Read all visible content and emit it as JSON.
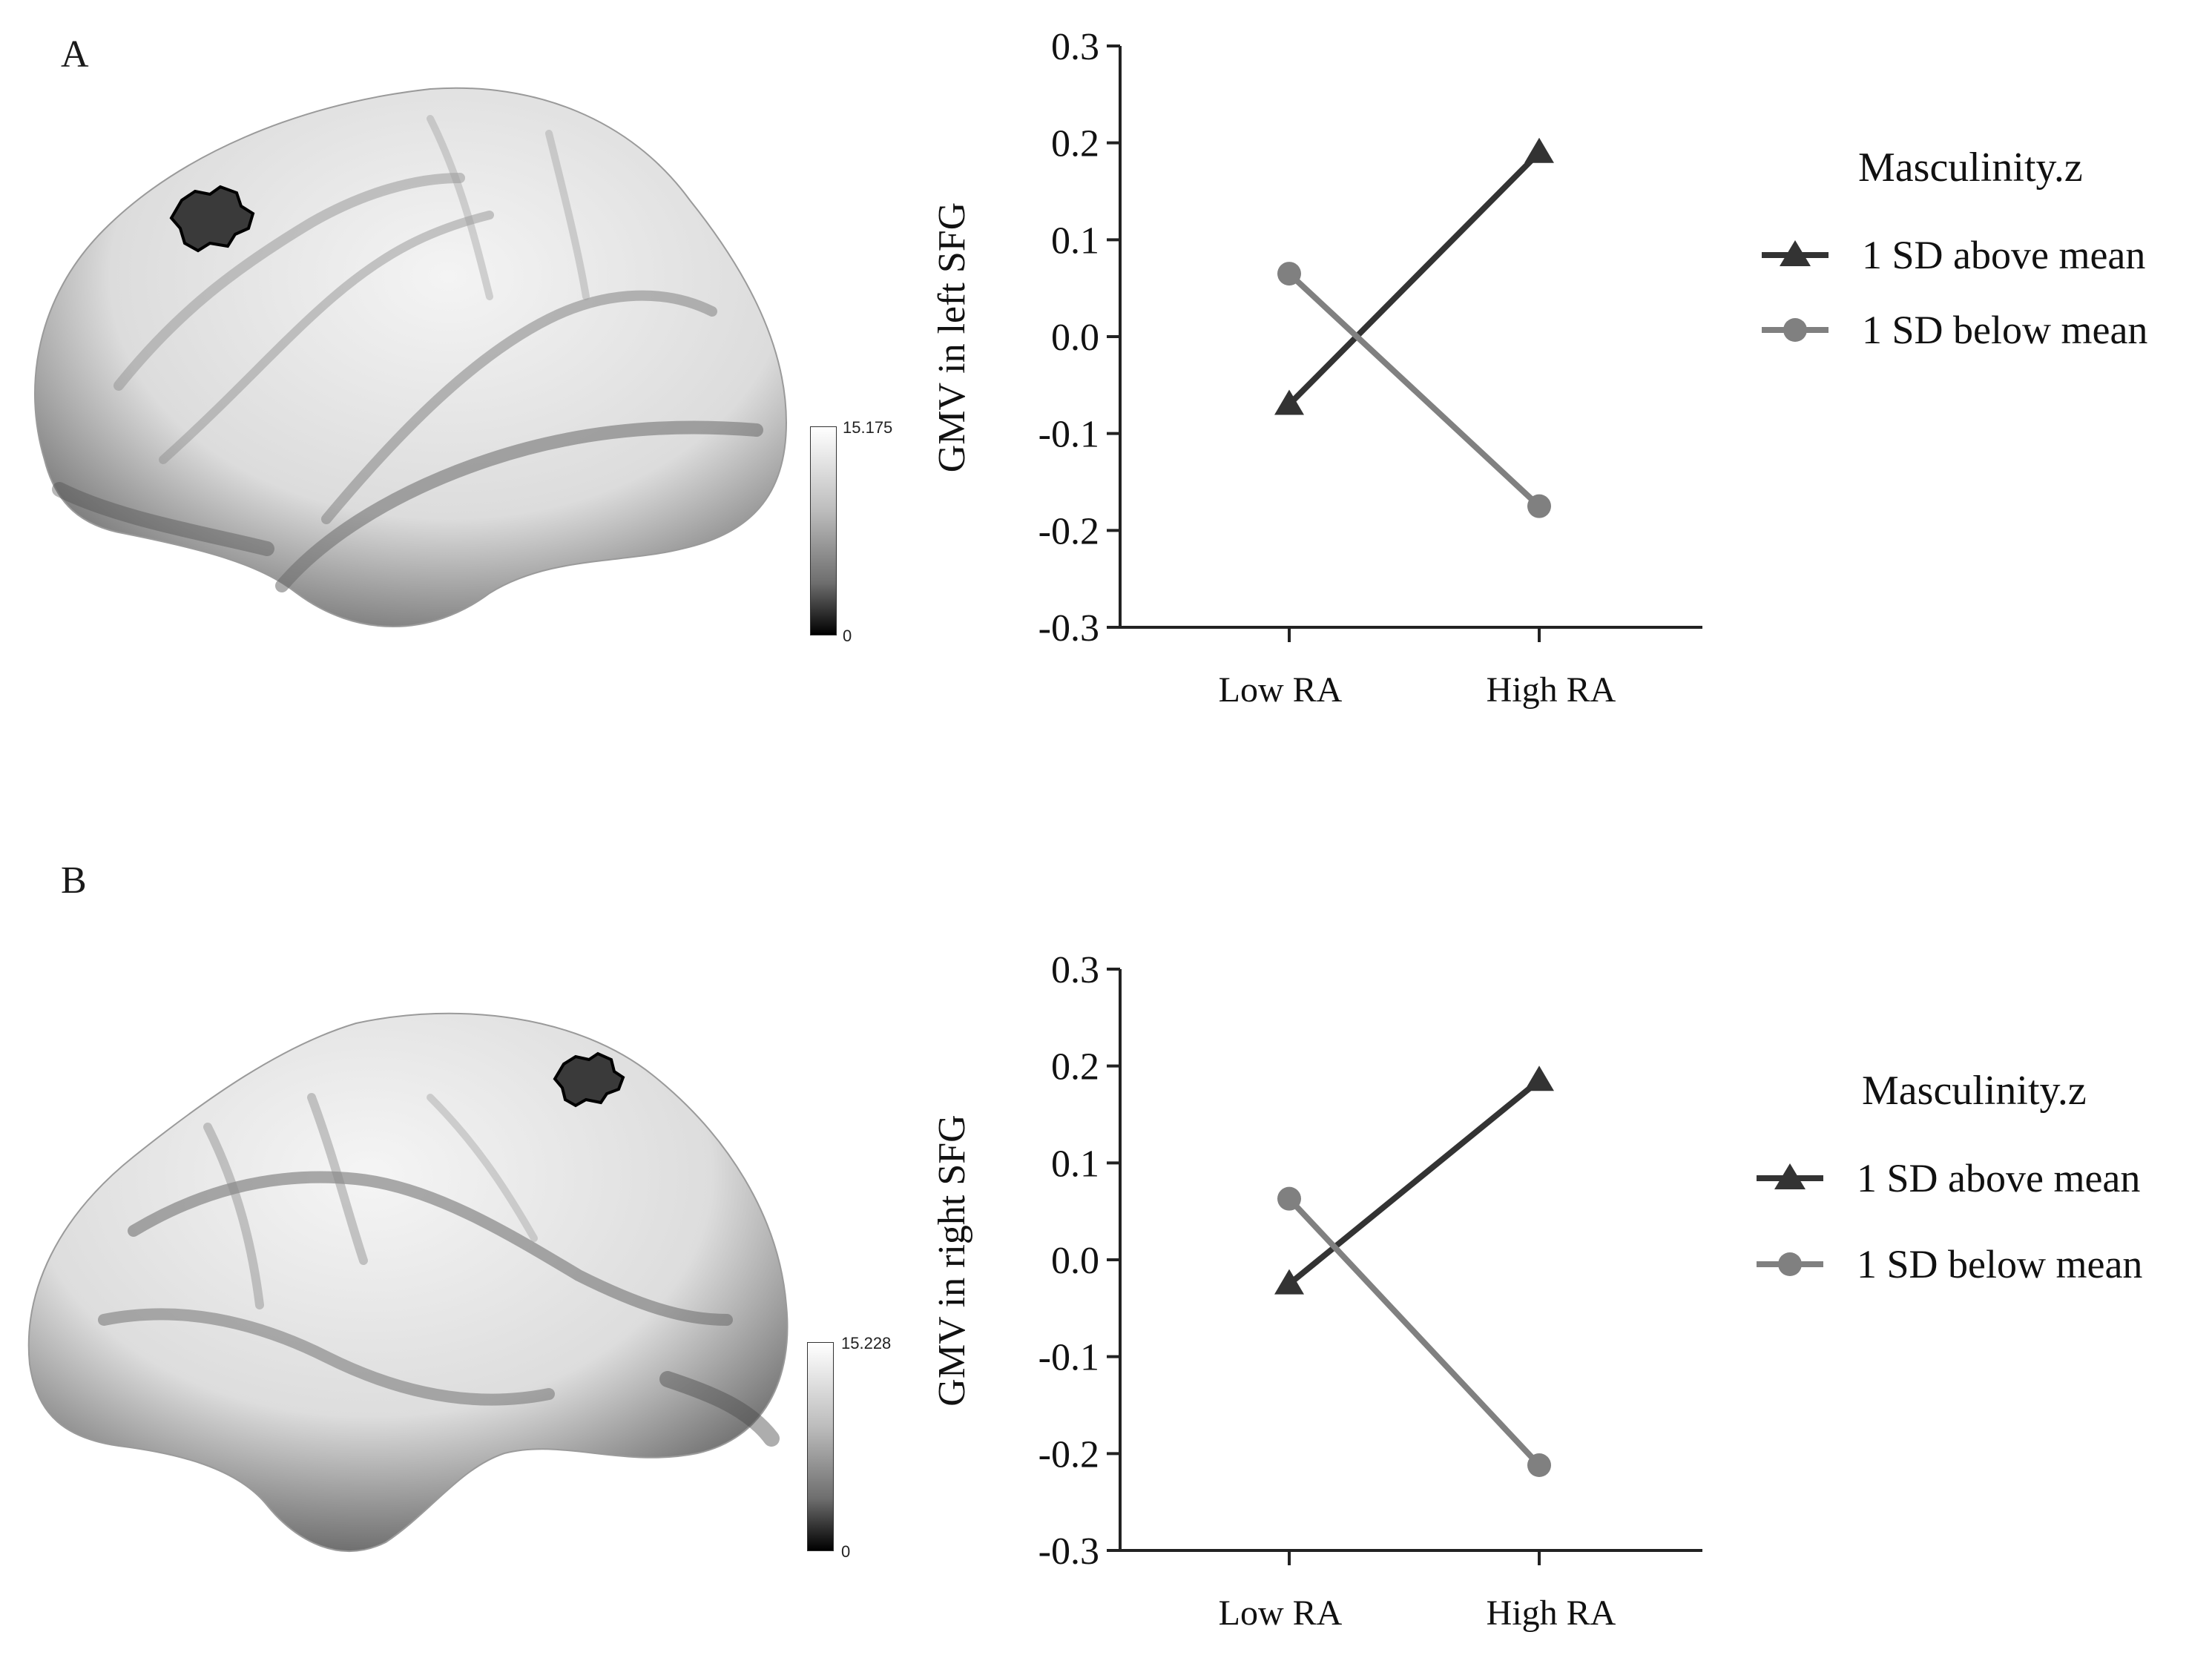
{
  "panels": [
    {
      "letter": "A",
      "colorbar": {
        "max_label": "15.175",
        "min_label": "0"
      }
    },
    {
      "letter": "B",
      "colorbar": {
        "max_label": "15.228",
        "min_label": "0"
      }
    }
  ],
  "colors": {
    "above": "#333333",
    "below": "#808080"
  },
  "chart_data": [
    {
      "type": "line",
      "categories": [
        "Low RA",
        "High RA"
      ],
      "ylabel": "GMV in left SFG",
      "ylim": [
        -0.3,
        0.3
      ],
      "yticks": [
        "0.3",
        "0.2",
        "0.1",
        "0.0",
        "-0.1",
        "-0.2",
        "-0.3"
      ],
      "legend_title": "Masculinity.z",
      "legend_position": "right",
      "series": [
        {
          "name": "1 SD above mean",
          "marker": "triangle",
          "values": [
            -0.07,
            0.19
          ]
        },
        {
          "name": "1 SD below mean",
          "marker": "circle",
          "values": [
            0.065,
            -0.175
          ]
        }
      ]
    },
    {
      "type": "line",
      "categories": [
        "Low RA",
        "High RA"
      ],
      "ylabel": "GMV in right SFG",
      "ylim": [
        -0.3,
        0.3
      ],
      "yticks": [
        "0.3",
        "0.2",
        "0.1",
        "0.0",
        "-0.1",
        "-0.2",
        "-0.3"
      ],
      "legend_title": "Masculinity.z",
      "legend_position": "right",
      "series": [
        {
          "name": "1 SD above mean",
          "marker": "triangle",
          "values": [
            -0.025,
            0.185
          ]
        },
        {
          "name": "1 SD below mean",
          "marker": "circle",
          "values": [
            0.063,
            -0.212
          ]
        }
      ]
    }
  ]
}
